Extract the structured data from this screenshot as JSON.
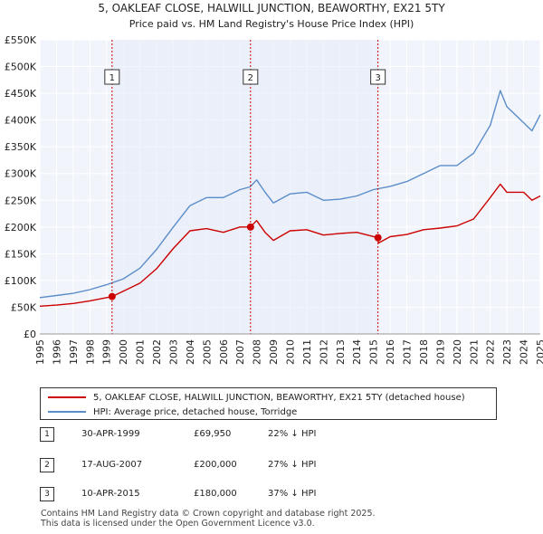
{
  "chart_data": {
    "type": "line",
    "title": "5, OAKLEAF CLOSE, HALWILL JUNCTION, BEAWORTHY, EX21 5TY",
    "subtitle": "Price paid vs. HM Land Registry's House Price Index (HPI)",
    "xlim": [
      1995,
      2025
    ],
    "ylim": [
      0,
      550000
    ],
    "x_ticks": [
      "1995",
      "1996",
      "1997",
      "1998",
      "1999",
      "2000",
      "2001",
      "2002",
      "2003",
      "2004",
      "2005",
      "2006",
      "2007",
      "2008",
      "2009",
      "2010",
      "2011",
      "2012",
      "2013",
      "2014",
      "2015",
      "2016",
      "2017",
      "2018",
      "2019",
      "2020",
      "2021",
      "2022",
      "2023",
      "2024",
      "2025"
    ],
    "y_ticks": [
      {
        "value": 0,
        "label": "£0"
      },
      {
        "value": 50000,
        "label": "£50K"
      },
      {
        "value": 100000,
        "label": "£100K"
      },
      {
        "value": 150000,
        "label": "£150K"
      },
      {
        "value": 200000,
        "label": "£200K"
      },
      {
        "value": 250000,
        "label": "£250K"
      },
      {
        "value": 300000,
        "label": "£300K"
      },
      {
        "value": 350000,
        "label": "£350K"
      },
      {
        "value": 400000,
        "label": "£400K"
      },
      {
        "value": 450000,
        "label": "£450K"
      },
      {
        "value": 500000,
        "label": "£500K"
      },
      {
        "value": 550000,
        "label": "£550K"
      }
    ],
    "series": [
      {
        "name": "5, OAKLEAF CLOSE, HALWILL JUNCTION, BEAWORTHY, EX21 5TY (detached house)",
        "color": "#cc0000",
        "x": [
          1995.0,
          1996.0,
          1997.0,
          1998.0,
          1999.33,
          2000.0,
          2001.0,
          2002.0,
          2003.0,
          2004.0,
          2005.0,
          2006.0,
          2007.0,
          2007.63,
          2008.0,
          2008.5,
          2009.0,
          2010.0,
          2011.0,
          2012.0,
          2013.0,
          2014.0,
          2015.25,
          2015.3,
          2016.0,
          2017.0,
          2018.0,
          2019.0,
          2020.0,
          2021.0,
          2022.0,
          2022.6,
          2023.0,
          2024.0,
          2024.5,
          2025.0
        ],
        "y": [
          52000,
          54000,
          57000,
          62000,
          69950,
          80000,
          95000,
          122000,
          160000,
          193000,
          197000,
          190000,
          200000,
          200000,
          212000,
          190000,
          175000,
          193000,
          195000,
          185000,
          188000,
          190000,
          180000,
          170000,
          182000,
          186000,
          195000,
          198000,
          202000,
          215000,
          255000,
          280000,
          265000,
          265000,
          250000,
          258000
        ]
      },
      {
        "name": "HPI: Average price, detached house, Torridge",
        "color": "#5b8dc9",
        "x": [
          1995.0,
          1996.0,
          1997.0,
          1998.0,
          1999.0,
          2000.0,
          2001.0,
          2002.0,
          2003.0,
          2004.0,
          2005.0,
          2006.0,
          2007.0,
          2007.6,
          2008.0,
          2008.5,
          2009.0,
          2010.0,
          2011.0,
          2012.0,
          2013.0,
          2014.0,
          2015.0,
          2016.0,
          2017.0,
          2018.0,
          2019.0,
          2020.0,
          2021.0,
          2022.0,
          2022.6,
          2023.0,
          2024.0,
          2024.5,
          2025.0
        ],
        "y": [
          68000,
          72000,
          76000,
          83000,
          92000,
          103000,
          123000,
          158000,
          200000,
          240000,
          255000,
          255000,
          270000,
          275000,
          288000,
          265000,
          245000,
          262000,
          265000,
          250000,
          252000,
          258000,
          270000,
          276000,
          285000,
          300000,
          315000,
          315000,
          338000,
          390000,
          455000,
          425000,
          395000,
          380000,
          410000
        ]
      }
    ],
    "sales": [
      {
        "num": "1",
        "x": 1999.33,
        "price": 69950,
        "date": "30-APR-1999",
        "price_label": "£69,950",
        "hpi": "22% ↓ HPI"
      },
      {
        "num": "2",
        "x": 2007.63,
        "price": 200000,
        "date": "17-AUG-2007",
        "price_label": "£200,000",
        "hpi": "27% ↓ HPI"
      },
      {
        "num": "3",
        "x": 2015.27,
        "price": 180000,
        "date": "10-APR-2015",
        "price_label": "£180,000",
        "hpi": "37% ↓ HPI"
      }
    ]
  },
  "legend": {
    "property_label": "5, OAKLEAF CLOSE, HALWILL JUNCTION, BEAWORTHY, EX21 5TY (detached house)",
    "hpi_label": "HPI: Average price, detached house, Torridge"
  },
  "footer": {
    "line1": "Contains HM Land Registry data © Crown copyright and database right 2025.",
    "line2": "This data is licensed under the Open Government Licence v3.0."
  }
}
